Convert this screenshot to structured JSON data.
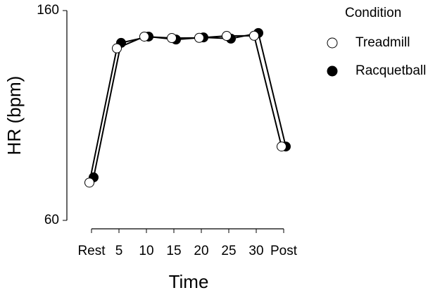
{
  "chart_data": {
    "type": "line",
    "categories": [
      "Rest",
      "5",
      "10",
      "15",
      "20",
      "25",
      "30",
      "Post"
    ],
    "x_label": "Time",
    "y_label": "HR (bpm)",
    "ylim": [
      60,
      160
    ],
    "yticks": [
      60,
      160
    ],
    "legend_title": "Condition",
    "legend": "right",
    "series": [
      {
        "name": "Treadmill",
        "color": "#ffffff",
        "values": [
          78,
          142,
          147.6,
          146.9,
          147,
          147.9,
          148,
          95.2
        ]
      },
      {
        "name": "Racquetball",
        "color": "#000000",
        "values": [
          80.5,
          144.6,
          147.6,
          146.2,
          147.2,
          146.6,
          149.3,
          95.2
        ]
      }
    ]
  }
}
